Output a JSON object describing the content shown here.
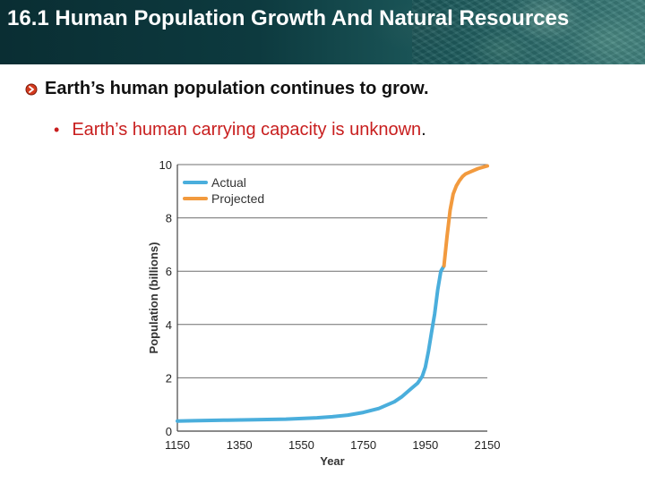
{
  "slide": {
    "title": "16.1 Human Population Growth And Natural Resources",
    "bullet_main": "Earth’s human population continues to grow.",
    "bullet_sub": "Earth’s human carrying capacity is unknown",
    "bullet_sub_end": "."
  },
  "colors": {
    "actual": "#4aaedc",
    "projected": "#f29a3e",
    "bullet_red": "#c81e1e"
  },
  "chart_data": {
    "type": "line",
    "title": "",
    "xlabel": "Year",
    "ylabel": "Population (billions)",
    "xlim": [
      1150,
      2150
    ],
    "ylim": [
      0,
      10
    ],
    "x_ticks": [
      1150,
      1350,
      1550,
      1750,
      1950,
      2150
    ],
    "y_ticks": [
      0,
      2,
      4,
      6,
      8,
      10
    ],
    "grid": "horizontal",
    "legend": "top-left",
    "series": [
      {
        "name": "Actual",
        "color": "#4aaedc",
        "x": [
          1150,
          1200,
          1300,
          1400,
          1500,
          1600,
          1650,
          1700,
          1750,
          1800,
          1850,
          1875,
          1900,
          1925,
          1940,
          1950,
          1960,
          1970,
          1980,
          1990,
          2000,
          2010
        ],
        "y": [
          0.38,
          0.39,
          0.41,
          0.43,
          0.45,
          0.5,
          0.54,
          0.6,
          0.7,
          0.85,
          1.1,
          1.3,
          1.55,
          1.8,
          2.05,
          2.4,
          3.0,
          3.7,
          4.4,
          5.3,
          6.0,
          6.2
        ]
      },
      {
        "name": "Projected",
        "color": "#f29a3e",
        "x": [
          2010,
          2020,
          2030,
          2040,
          2050,
          2060,
          2070,
          2080,
          2100,
          2120,
          2150
        ],
        "y": [
          6.2,
          7.3,
          8.3,
          8.9,
          9.2,
          9.4,
          9.55,
          9.65,
          9.75,
          9.85,
          9.95
        ]
      }
    ]
  }
}
